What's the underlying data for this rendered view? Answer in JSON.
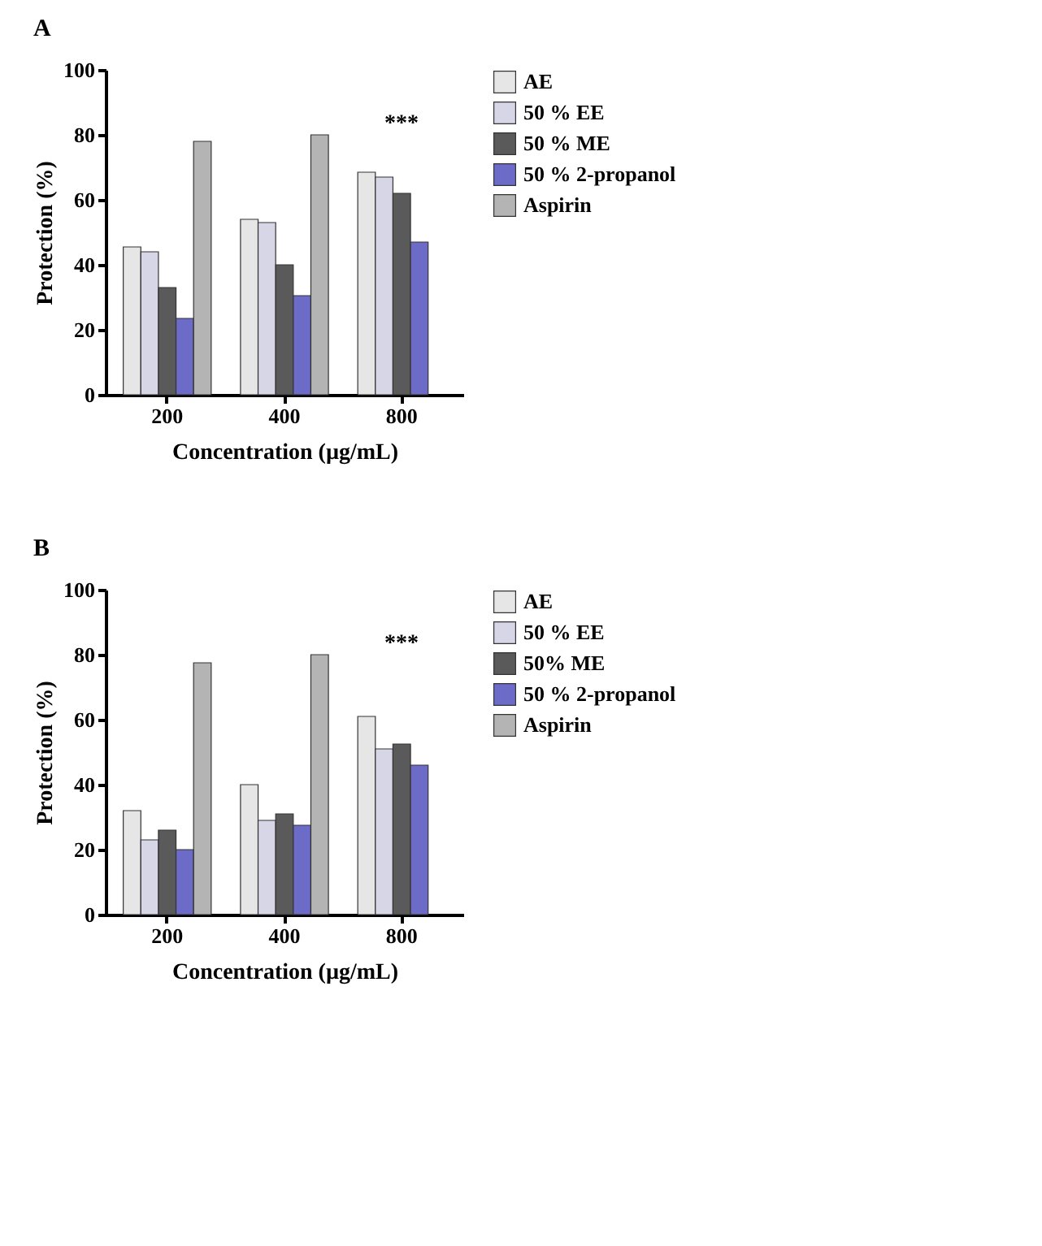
{
  "chart_data": [
    {
      "type": "bar",
      "title": "A",
      "xlabel": "Concentration (µg/mL)",
      "ylabel": "Protection (%)",
      "categories": [
        "200",
        "400",
        "800"
      ],
      "series": [
        {
          "name": "AE",
          "color": "#e6e6e6",
          "values": [
            45.5,
            54,
            68.5
          ]
        },
        {
          "name": "50 % EE",
          "color": "#d6d6e6",
          "values": [
            44,
            53,
            67
          ]
        },
        {
          "name": "50 % ME",
          "color": "#5a5a5a",
          "values": [
            33,
            40,
            62
          ]
        },
        {
          "name": "50 % 2-propanol",
          "color": "#6c6cc8",
          "values": [
            23.5,
            30.5,
            47
          ]
        },
        {
          "name": "Aspirin",
          "color": "#b4b4b4",
          "values": [
            78,
            80,
            null
          ]
        }
      ],
      "ylim": [
        0,
        100
      ],
      "yticks": [
        0,
        20,
        40,
        60,
        80,
        100
      ],
      "grid": false,
      "legend": "top right",
      "annotations": [
        "***"
      ]
    },
    {
      "type": "bar",
      "title": "B",
      "xlabel": "Concentration (µg/mL)",
      "ylabel": "Protection (%)",
      "categories": [
        "200",
        "400",
        "800"
      ],
      "series": [
        {
          "name": "AE",
          "color": "#e6e6e6",
          "values": [
            32,
            40,
            61
          ]
        },
        {
          "name": "50 % EE",
          "color": "#d6d6e6",
          "values": [
            23,
            29,
            51
          ]
        },
        {
          "name": "50% ME",
          "color": "#5a5a5a",
          "values": [
            26,
            31,
            52.5
          ]
        },
        {
          "name": "50 % 2-propanol",
          "color": "#6c6cc8",
          "values": [
            20,
            27.5,
            46
          ]
        },
        {
          "name": "Aspirin",
          "color": "#b4b4b4",
          "values": [
            77.5,
            80,
            null
          ]
        }
      ],
      "ylim": [
        0,
        100
      ],
      "yticks": [
        0,
        20,
        40,
        60,
        80,
        100
      ],
      "grid": false,
      "legend": "top right",
      "annotations": [
        "***"
      ]
    }
  ]
}
